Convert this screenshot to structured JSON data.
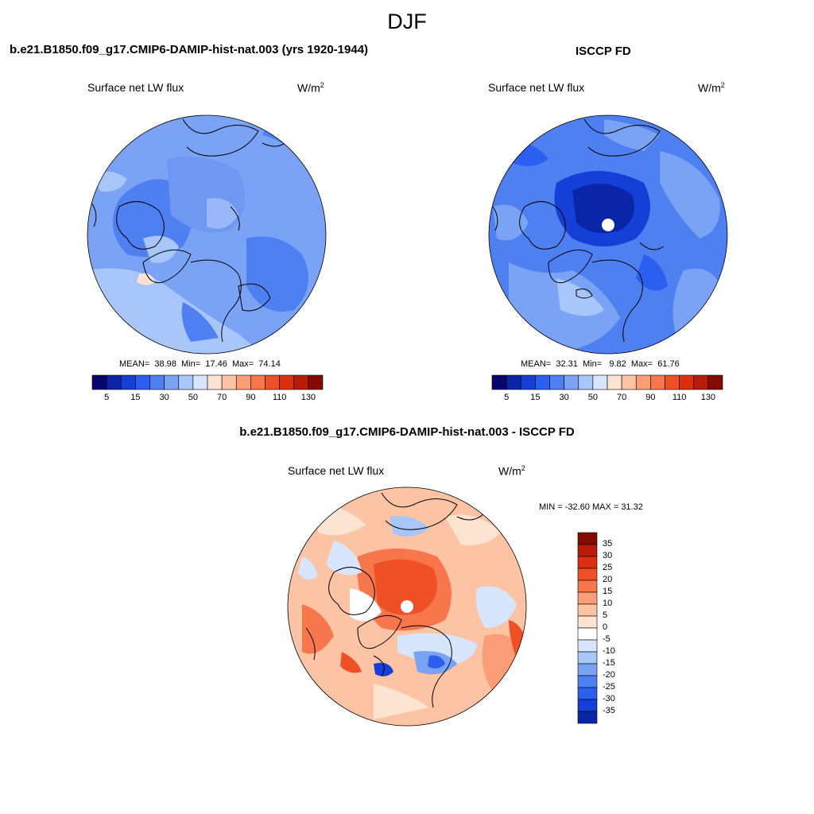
{
  "figure": {
    "season": "DJF"
  },
  "panels": {
    "model": {
      "title": "b.e21.B1850.f09_g17.CMIP6-DAMIP-hist-nat.003 (yrs 1920-1944)",
      "variable": "Surface net LW flux",
      "units_base": "W/m",
      "units_exp": "2",
      "stats": {
        "mean_label": "MEAN=",
        "mean": "38.98",
        "min_label": "Min=",
        "min": "17.46",
        "max_label": "Max=",
        "max": "74.14"
      }
    },
    "obs": {
      "title": "ISCCP FD",
      "variable": "Surface net LW flux",
      "units_base": "W/m",
      "units_exp": "2",
      "stats": {
        "mean_label": "MEAN=",
        "mean": "32.31",
        "min_label": "Min=",
        "min": "9.82",
        "max_label": "Max=",
        "max": "61.76"
      }
    },
    "diff": {
      "title": "b.e21.B1850.f09_g17.CMIP6-DAMIP-hist-nat.003 - ISCCP FD",
      "variable": "Surface net LW flux",
      "units_base": "W/m",
      "units_exp": "2",
      "range_text": "MIN = -32.60 MAX =  31.32"
    }
  },
  "chart_data": [
    {
      "type": "heatmap",
      "projection": "north polar stereographic",
      "title": "b.e21.B1850.f09_g17.CMIP6-DAMIP-hist-nat.003 (yrs 1920-1944)",
      "variable": "Surface net LW flux",
      "units": "W/m2",
      "mean": 38.98,
      "min": 17.46,
      "max": 74.14,
      "colorbar_levels": [
        5,
        15,
        30,
        50,
        70,
        90,
        110,
        130
      ],
      "colorbar_tick_labels": [
        "5",
        "15",
        "30",
        "50",
        "70",
        "90",
        "110",
        "130"
      ],
      "colorbar_colors": [
        "#06066e",
        "#0a25a8",
        "#1440d8",
        "#2b5ff0",
        "#4e80f2",
        "#7aa2f5",
        "#a9c6fa",
        "#d7e6fd",
        "#fde3d2",
        "#fcc3a5",
        "#fb9d76",
        "#f7764c",
        "#ef5026",
        "#dc2e10",
        "#b81c08",
        "#840b04"
      ]
    },
    {
      "type": "heatmap",
      "projection": "north polar stereographic",
      "title": "ISCCP FD",
      "variable": "Surface net LW flux",
      "units": "W/m2",
      "mean": 32.31,
      "min": 9.82,
      "max": 61.76,
      "colorbar_levels": [
        5,
        15,
        30,
        50,
        70,
        90,
        110,
        130
      ],
      "colorbar_tick_labels": [
        "5",
        "15",
        "30",
        "50",
        "70",
        "90",
        "110",
        "130"
      ],
      "colorbar_colors": [
        "#06066e",
        "#0a25a8",
        "#1440d8",
        "#2b5ff0",
        "#4e80f2",
        "#7aa2f5",
        "#a9c6fa",
        "#d7e6fd",
        "#fde3d2",
        "#fcc3a5",
        "#fb9d76",
        "#f7764c",
        "#ef5026",
        "#dc2e10",
        "#b81c08",
        "#840b04"
      ]
    },
    {
      "type": "heatmap",
      "projection": "north polar stereographic",
      "title": "b.e21.B1850.f09_g17.CMIP6-DAMIP-hist-nat.003 - ISCCP FD",
      "variable": "Surface net LW flux",
      "units": "W/m2",
      "min": -32.6,
      "max": 31.32,
      "colorbar_tick_labels": [
        "35",
        "30",
        "25",
        "20",
        "15",
        "10",
        "5",
        "0",
        "-5",
        "-10",
        "-15",
        "-20",
        "-25",
        "-30",
        "-35"
      ],
      "colorbar_colors": [
        "#840b04",
        "#b81c08",
        "#dc2e10",
        "#ef5026",
        "#f7764c",
        "#fb9d76",
        "#fcc3a5",
        "#fde3d2",
        "#ffffff",
        "#d7e6fd",
        "#a9c6fa",
        "#7aa2f5",
        "#4e80f2",
        "#2b5ff0",
        "#1440d8",
        "#0a25a8"
      ]
    }
  ]
}
